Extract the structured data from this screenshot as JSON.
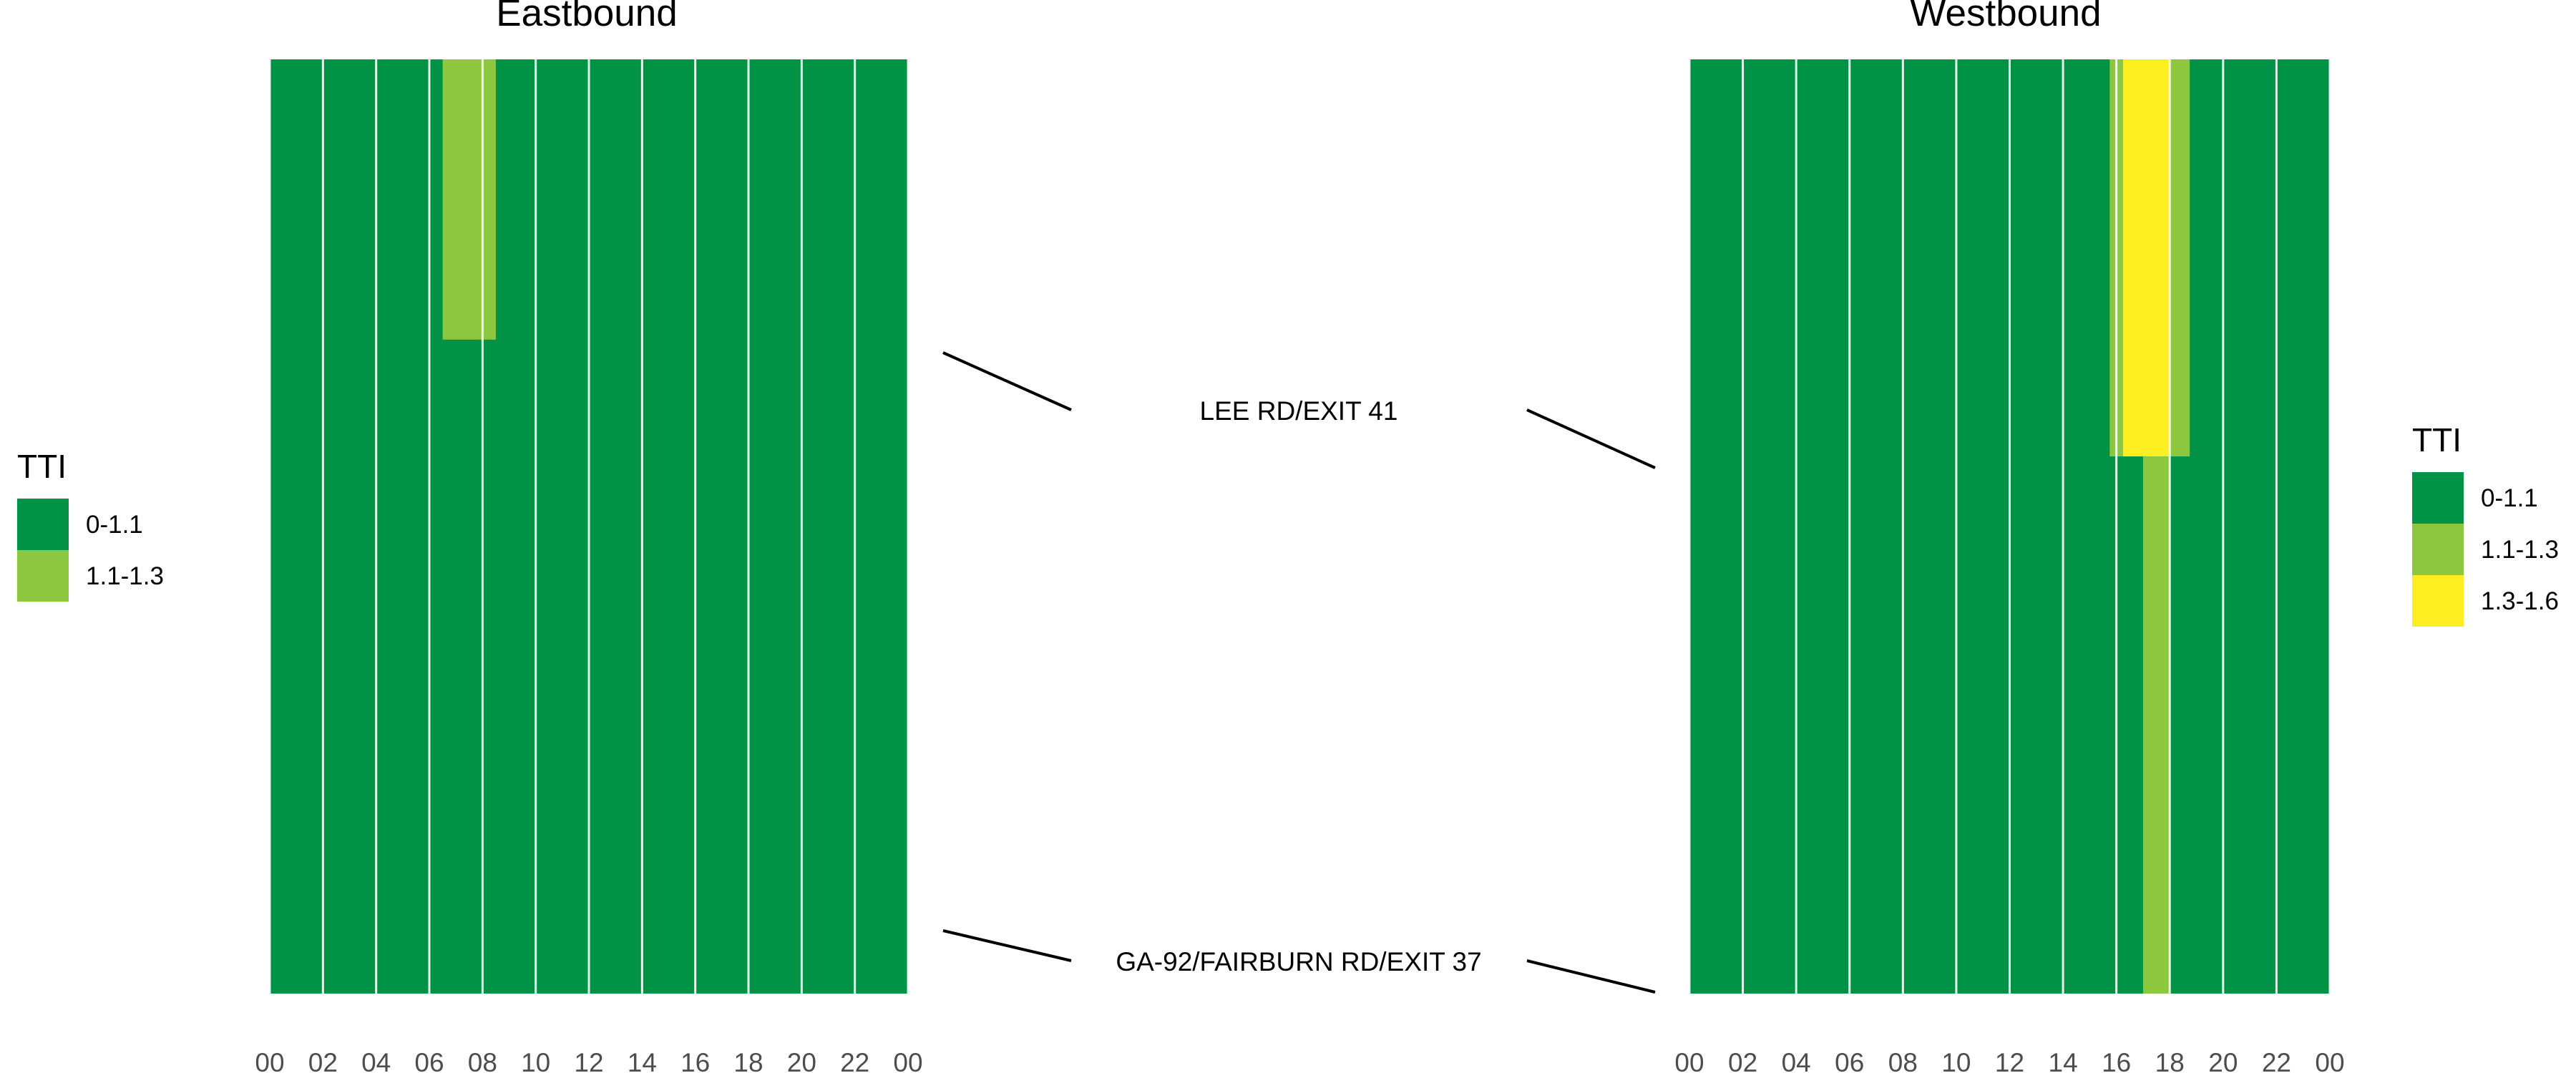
{
  "chart_data": [
    {
      "type": "heatmap",
      "title": "Eastbound",
      "x_tick_labels": [
        "00",
        "02",
        "04",
        "06",
        "08",
        "10",
        "12",
        "14",
        "16",
        "18",
        "20",
        "22",
        "00"
      ],
      "xlim": [
        0,
        24
      ],
      "y_endpoints": [
        "LEE RD/EXIT 41",
        "GA-92/FAIRBURN RD/EXIT 37"
      ],
      "legend": {
        "title": "TTI",
        "position": "left",
        "entries": [
          {
            "label": "0-1.1",
            "color": "#009245"
          },
          {
            "label": "1.1-1.3",
            "color": "#8dc63f"
          }
        ]
      },
      "base_category": "0-1.1",
      "cells": [
        {
          "hour_start": 6.5,
          "hour_end": 8.5,
          "frac_start": 0.0,
          "frac_end": 0.3,
          "category": "1.1-1.3"
        }
      ],
      "grid": true
    },
    {
      "type": "heatmap",
      "title": "Westbound",
      "x_tick_labels": [
        "00",
        "02",
        "04",
        "06",
        "08",
        "10",
        "12",
        "14",
        "16",
        "18",
        "20",
        "22",
        "00"
      ],
      "xlim": [
        0,
        24
      ],
      "y_endpoints": [
        "LEE RD/EXIT 41",
        "GA-92/FAIRBURN RD/EXIT 37"
      ],
      "legend": {
        "title": "TTI",
        "position": "right",
        "entries": [
          {
            "label": "0-1.1",
            "color": "#009245"
          },
          {
            "label": "1.1-1.3",
            "color": "#8dc63f"
          },
          {
            "label": "1.3-1.6",
            "color": "#fcee21"
          }
        ]
      },
      "base_category": "0-1.1",
      "cells": [
        {
          "hour_start": 15.75,
          "hour_end": 16.25,
          "frac_start": 0.0,
          "frac_end": 0.425,
          "category": "1.1-1.3"
        },
        {
          "hour_start": 16.25,
          "hour_end": 18.0,
          "frac_start": 0.0,
          "frac_end": 0.425,
          "category": "1.3-1.6"
        },
        {
          "hour_start": 18.0,
          "hour_end": 18.75,
          "frac_start": 0.0,
          "frac_end": 0.425,
          "category": "1.1-1.3"
        },
        {
          "hour_start": 17.0,
          "hour_end": 18.0,
          "frac_start": 0.425,
          "frac_end": 1.0,
          "category": "1.1-1.3"
        }
      ],
      "grid": true
    }
  ],
  "road_labels": [
    "LEE RD/EXIT 41",
    "GA-92/FAIRBURN RD/EXIT 37"
  ]
}
